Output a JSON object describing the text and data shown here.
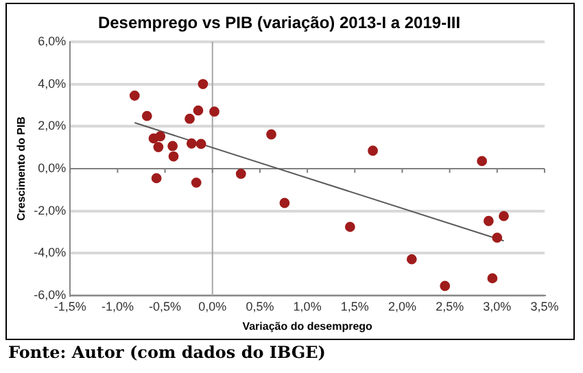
{
  "chart_data": {
    "type": "scatter",
    "title": "Desemprego vs PIB (variação) 2013-I a 2019-III",
    "xlabel": "Variação do desemprego",
    "ylabel": "Crescimento do PIB",
    "series": [
      {
        "color": "#a01c1c",
        "x": [
          -0.82,
          -0.69,
          -0.62,
          -0.55,
          -0.57,
          -0.42,
          -0.41,
          -0.59,
          -0.24,
          -0.15,
          -0.1,
          0.02,
          -0.22,
          -0.12,
          -0.17,
          0.3,
          0.62,
          0.76,
          1.69,
          1.45,
          2.84,
          2.91,
          3.07,
          3.0,
          2.1,
          2.45,
          2.95
        ],
        "values": [
          3.45,
          2.49,
          1.43,
          1.53,
          1.02,
          1.07,
          0.58,
          -0.45,
          2.36,
          2.75,
          4.0,
          2.7,
          1.19,
          1.17,
          -0.66,
          -0.24,
          1.62,
          -1.62,
          0.85,
          -2.75,
          0.36,
          -2.47,
          -2.24,
          -3.26,
          -4.28,
          -5.54,
          -5.18
        ]
      },
      {
        "type": "line",
        "marker": "none",
        "color": "#595959",
        "x": [
          -0.82,
          3.07
        ],
        "values": [
          2.17,
          -3.41
        ]
      }
    ],
    "xlim": [
      -1.5,
      3.5
    ],
    "ylim": [
      -6,
      6
    ],
    "xticks": [
      {
        "value": -1.5,
        "label": "-1,5%"
      },
      {
        "value": -1,
        "label": "-1,0%"
      },
      {
        "value": -0.5,
        "label": "-0,5%"
      },
      {
        "value": 0,
        "label": "0,0%"
      },
      {
        "value": 0.5,
        "label": "0,5%"
      },
      {
        "value": 1,
        "label": "1,0%"
      },
      {
        "value": 1.5,
        "label": "1,5%"
      },
      {
        "value": 2,
        "label": "2,0%"
      },
      {
        "value": 2.5,
        "label": "2,5%"
      },
      {
        "value": 3,
        "label": "3,0%"
      },
      {
        "value": 3.5,
        "label": "3,5%"
      }
    ],
    "yticks": [
      {
        "value": -6,
        "label": "-6,0%"
      },
      {
        "value": -4,
        "label": "-4,0%"
      },
      {
        "value": -2,
        "label": "-2,0%"
      },
      {
        "value": 0,
        "label": "0,0%"
      },
      {
        "value": 2,
        "label": "2,0%"
      },
      {
        "value": 4,
        "label": "4,0%"
      },
      {
        "value": 6,
        "label": "6,0%"
      }
    ],
    "ref_lines": [
      {
        "axis": "x",
        "value": 0,
        "color": "#a6a6a6"
      },
      {
        "axis": "y",
        "value": 0,
        "color": "#808080"
      }
    ],
    "grid": "y",
    "legend": false,
    "marker": "circle",
    "annotations": [
      "Fonte: Autor (com dados do IBGE)"
    ]
  }
}
